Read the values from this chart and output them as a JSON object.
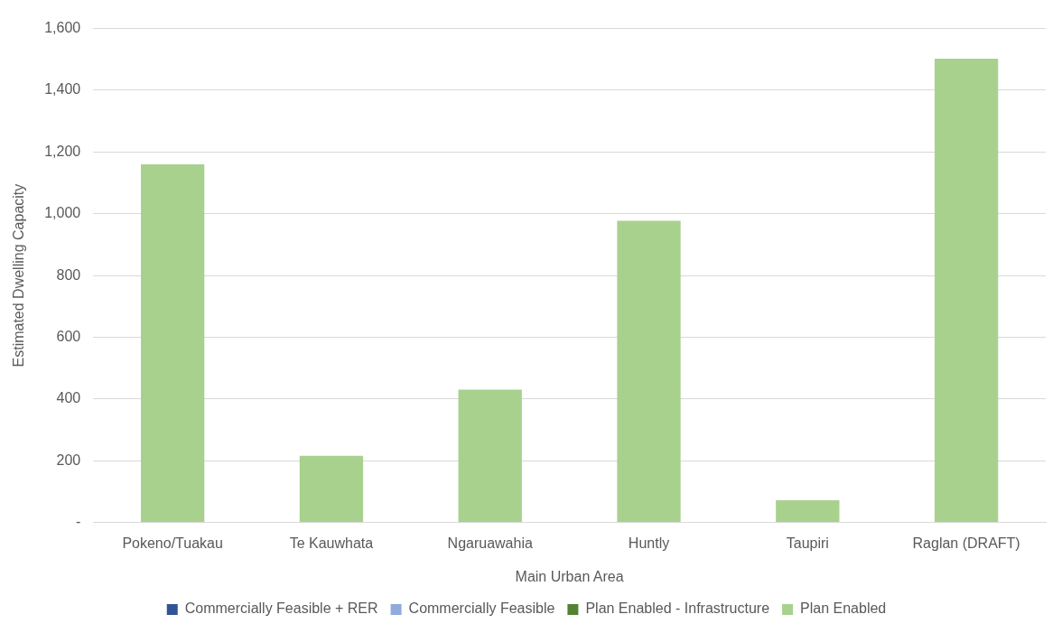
{
  "chart_data": {
    "type": "bar",
    "stacked": true,
    "xlabel": "Main Urban Area",
    "ylabel": "Estimated Dwelling Capacity",
    "categories": [
      "Pokeno/Tuakau",
      "Te Kauwhata",
      "Ngaruawahia",
      "Huntly",
      "Taupiri",
      "Raglan (DRAFT)"
    ],
    "series": [
      {
        "name": "Commercially Feasible + RER",
        "color": "#2f5597",
        "values": [
          null,
          null,
          null,
          null,
          null,
          null
        ]
      },
      {
        "name": "Commercially Feasible",
        "color": "#8faadc",
        "values": [
          null,
          null,
          null,
          null,
          null,
          null
        ]
      },
      {
        "name": "Plan Enabled - Infrastructure",
        "color": "#548235",
        "values": [
          null,
          null,
          null,
          null,
          null,
          null
        ]
      },
      {
        "name": "Plan Enabled",
        "color": "#a9d18e",
        "values": [
          1160,
          216,
          430,
          977,
          72,
          1502
        ]
      }
    ],
    "ylim": [
      0,
      1600
    ],
    "yticks": [
      {
        "value": 0,
        "label": "-"
      },
      200,
      400,
      600,
      800,
      {
        "value": 1000,
        "label": "1,000"
      },
      {
        "value": 1200,
        "label": "1,200"
      },
      {
        "value": 1400,
        "label": "1,400"
      },
      {
        "value": 1600,
        "label": "1,600"
      }
    ],
    "grid": "y",
    "legend": "bottom"
  }
}
